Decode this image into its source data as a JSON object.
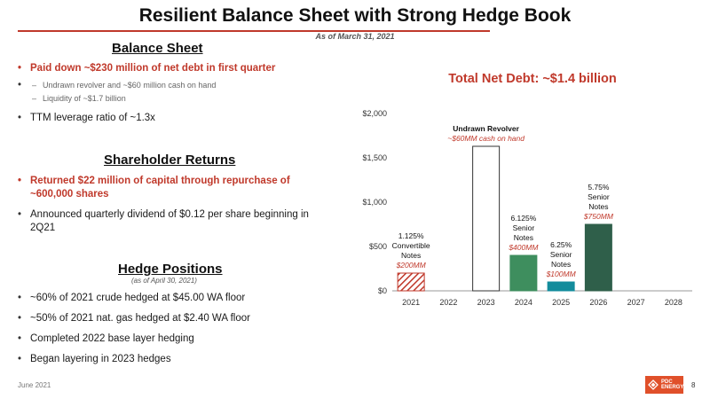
{
  "slide": {
    "title": "Resilient Balance Sheet with Strong Hedge Book",
    "as_of": "As of March 31, 2021",
    "footer": "June 2021",
    "page_number": "8",
    "accent_color": "#c0392b"
  },
  "balance_sheet": {
    "heading": "Balance Sheet",
    "bullets": [
      "Paid down ~$230 million of net debt in first quarter",
      "TTM leverage ratio of ~1.3x"
    ],
    "sub_bullets": [
      "Undrawn revolver and ~$60 million cash on hand",
      "Liquidity of ~$1.7 billion"
    ]
  },
  "shareholder_returns": {
    "heading": "Shareholder Returns",
    "bullets": [
      "Returned $22 million of capital through repurchase of ~600,000 shares",
      "Announced quarterly dividend of $0.12 per share beginning in 2Q21"
    ]
  },
  "hedge_positions": {
    "heading": "Hedge Positions",
    "subheading": "(as of April 30, 2021)",
    "bullets": [
      "~60% of 2021 crude hedged at $45.00 WA floor",
      "~50% of 2021 nat. gas hedged at $2.40 WA floor",
      "Completed 2022 base layer hedging",
      "Began layering in 2023 hedges"
    ]
  },
  "logo": {
    "text_line1": "PDC",
    "text_line2": "ENERGY"
  },
  "chart_data": {
    "type": "bar",
    "title": "Total Net Debt: ~$1.4 billion",
    "categories": [
      "2021",
      "2022",
      "2023",
      "2024",
      "2025",
      "2026",
      "2027",
      "2028"
    ],
    "values": [
      200,
      0,
      1630,
      400,
      100,
      750,
      0,
      0
    ],
    "ylim": [
      0,
      2000
    ],
    "yticks": [
      "$0",
      "$500",
      "$1,000",
      "$1,500",
      "$2,000"
    ],
    "bar_colors": [
      "#c0392b",
      "",
      "#ffffff",
      "#3e8e5e",
      "#138c9c",
      "#2f5f4a",
      "",
      ""
    ],
    "bar_hatched": [
      true,
      false,
      false,
      false,
      false,
      false,
      false,
      false
    ],
    "labels": [
      {
        "category": "2021",
        "lines": [
          "1.125%",
          "Convertible",
          "Notes"
        ],
        "amount": "$200MM"
      },
      {
        "category": "2023",
        "lines": [
          "Undrawn Revolver"
        ],
        "amount": "~$60MM cash on hand"
      },
      {
        "category": "2024",
        "lines": [
          "6.125%",
          "Senior",
          "Notes"
        ],
        "amount": "$400MM"
      },
      {
        "category": "2025",
        "lines": [
          "6.25%",
          "Senior",
          "Notes"
        ],
        "amount": "$100MM"
      },
      {
        "category": "2026",
        "lines": [
          "5.75%",
          "Senior",
          "Notes"
        ],
        "amount": "$750MM"
      }
    ],
    "grid": false
  }
}
